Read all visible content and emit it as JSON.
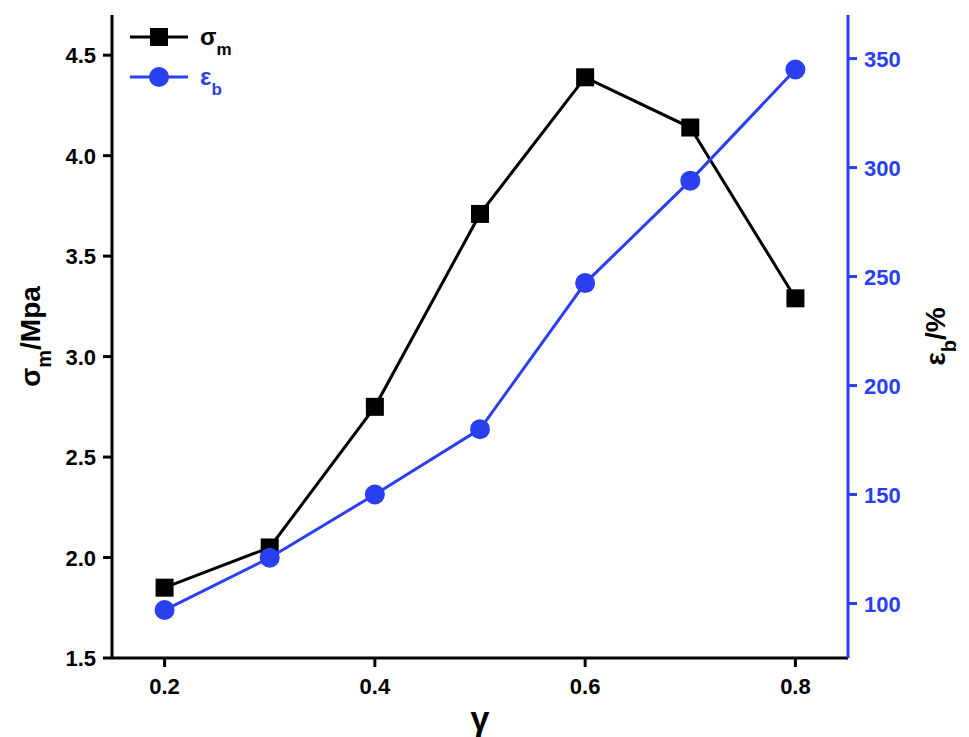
{
  "chart_data": {
    "type": "line",
    "x_label": "γ",
    "y_label": "σm/Mpa",
    "y2_label": "εb/%",
    "x": [
      0.2,
      0.3,
      0.4,
      0.5,
      0.6,
      0.7,
      0.8
    ],
    "xlim": [
      0.15,
      0.85
    ],
    "xticks": [
      0.2,
      0.4,
      0.6,
      0.8
    ],
    "ylim": [
      1.5,
      4.7
    ],
    "yticks": [
      1.5,
      {
        "value": 2,
        "label": "2.0"
      },
      2.5,
      {
        "value": 3,
        "label": "3.0"
      },
      3.5,
      {
        "value": 4,
        "label": "4.0"
      },
      4.5
    ],
    "y2lim": [
      75,
      370
    ],
    "y2ticks": [
      100,
      150,
      200,
      250,
      300,
      350
    ],
    "legend": "upper left",
    "series": [
      {
        "name": "σm",
        "color": "#000000",
        "marker": "square",
        "line_style": "solid",
        "values": [
          1.85,
          2.05,
          2.75,
          3.71,
          4.39,
          4.14,
          3.29
        ]
      },
      {
        "name": "εb",
        "color": "#2a3ff0",
        "marker": "circle",
        "line_style": "solid",
        "axis": "y2",
        "values": [
          97,
          121,
          150,
          180,
          247,
          294,
          345
        ]
      }
    ]
  }
}
